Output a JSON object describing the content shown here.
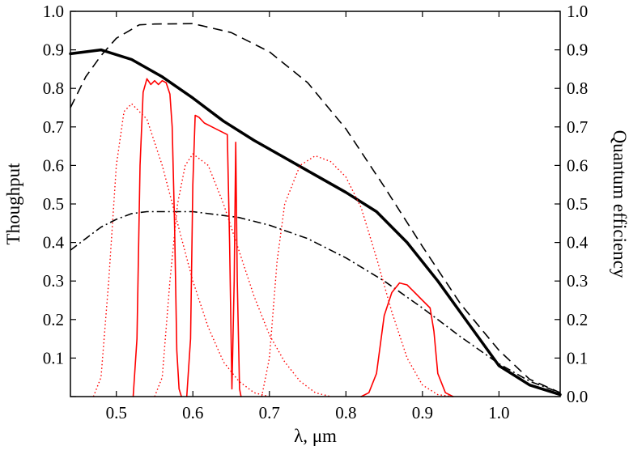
{
  "chart_data": {
    "type": "line",
    "xlabel": "λ, μm",
    "ylabel": "Thoughput",
    "ylabel_right": "Quantum efficiency",
    "xlim": [
      0.44,
      1.08
    ],
    "ylim": [
      0.0,
      1.0
    ],
    "ylim_right": [
      0.0,
      1.0
    ],
    "x_ticks": [
      0.5,
      0.6,
      0.7,
      0.8,
      0.9,
      1.0
    ],
    "x_tick_labels": [
      "0.5",
      "0.6",
      "0.7",
      "0.8",
      "0.9",
      "1.0"
    ],
    "y_ticks": [
      0.0,
      0.1,
      0.2,
      0.3,
      0.4,
      0.5,
      0.6,
      0.7,
      0.8,
      0.9,
      1.0
    ],
    "y_tick_labels_left": [
      "",
      "0.1",
      "0.2",
      "0.3",
      "0.4",
      "0.5",
      "0.6",
      "0.7",
      "0.8",
      "0.9",
      "1.0"
    ],
    "y_tick_labels_right": [
      "0.0",
      "0.1",
      "0.2",
      "0.3",
      "0.4",
      "0.5",
      "0.6",
      "0.7",
      "0.8",
      "0.9",
      "1.0"
    ],
    "grid": false,
    "series": [
      {
        "style": "solid-thick",
        "color": "#000000",
        "x": [
          0.44,
          0.46,
          0.48,
          0.52,
          0.56,
          0.6,
          0.64,
          0.68,
          0.72,
          0.76,
          0.8,
          0.84,
          0.88,
          0.92,
          0.96,
          1.0,
          1.04,
          1.08
        ],
        "y": [
          0.89,
          0.895,
          0.9,
          0.875,
          0.83,
          0.775,
          0.715,
          0.665,
          0.62,
          0.575,
          0.53,
          0.48,
          0.4,
          0.3,
          0.19,
          0.08,
          0.03,
          0.005
        ]
      },
      {
        "style": "dashed",
        "color": "#000000",
        "x": [
          0.44,
          0.46,
          0.48,
          0.5,
          0.53,
          0.55,
          0.6,
          0.65,
          0.7,
          0.75,
          0.8,
          0.85,
          0.9,
          0.95,
          1.0,
          1.04,
          1.08
        ],
        "y": [
          0.75,
          0.83,
          0.885,
          0.93,
          0.965,
          0.967,
          0.968,
          0.945,
          0.895,
          0.815,
          0.695,
          0.545,
          0.39,
          0.24,
          0.12,
          0.045,
          0.01
        ]
      },
      {
        "style": "dashdot",
        "color": "#000000",
        "x": [
          0.44,
          0.46,
          0.48,
          0.5,
          0.52,
          0.54,
          0.6,
          0.66,
          0.7,
          0.75,
          0.8,
          0.85,
          0.9,
          0.95,
          1.0,
          1.04,
          1.08
        ],
        "y": [
          0.38,
          0.41,
          0.44,
          0.46,
          0.475,
          0.48,
          0.48,
          0.465,
          0.445,
          0.41,
          0.36,
          0.3,
          0.23,
          0.155,
          0.085,
          0.04,
          0.01
        ]
      },
      {
        "style": "solid",
        "color": "#ff0000",
        "x": [
          0.522,
          0.527,
          0.531,
          0.535,
          0.54,
          0.545,
          0.55,
          0.555,
          0.56,
          0.565,
          0.57,
          0.573,
          0.576,
          0.579,
          0.582,
          0.585
        ],
        "y": [
          0.0,
          0.15,
          0.6,
          0.79,
          0.825,
          0.81,
          0.82,
          0.81,
          0.82,
          0.815,
          0.785,
          0.7,
          0.45,
          0.12,
          0.02,
          0.0
        ]
      },
      {
        "style": "solid",
        "color": "#ff0000",
        "x": [
          0.592,
          0.597,
          0.6,
          0.603,
          0.608,
          0.615,
          0.625,
          0.635,
          0.645,
          0.648,
          0.651,
          0.654,
          0.656,
          0.658,
          0.661,
          0.663
        ],
        "y": [
          0.0,
          0.15,
          0.55,
          0.73,
          0.725,
          0.71,
          0.7,
          0.69,
          0.68,
          0.4,
          0.02,
          0.3,
          0.66,
          0.3,
          0.02,
          0.0
        ]
      },
      {
        "style": "solid",
        "color": "#ff0000",
        "x": [
          0.82,
          0.83,
          0.84,
          0.85,
          0.86,
          0.87,
          0.88,
          0.89,
          0.9,
          0.91,
          0.915,
          0.92,
          0.93,
          0.94
        ],
        "y": [
          0.0,
          0.01,
          0.06,
          0.21,
          0.27,
          0.295,
          0.29,
          0.27,
          0.25,
          0.23,
          0.17,
          0.06,
          0.01,
          0.0
        ]
      },
      {
        "style": "dotted",
        "color": "#ff0000",
        "x": [
          0.47,
          0.48,
          0.49,
          0.5,
          0.51,
          0.52,
          0.54,
          0.56,
          0.58,
          0.6,
          0.62,
          0.64,
          0.66,
          0.68,
          0.7
        ],
        "y": [
          0.0,
          0.05,
          0.3,
          0.6,
          0.74,
          0.76,
          0.72,
          0.6,
          0.45,
          0.3,
          0.18,
          0.09,
          0.04,
          0.01,
          0.0
        ]
      },
      {
        "style": "dotted",
        "color": "#ff0000",
        "x": [
          0.55,
          0.56,
          0.57,
          0.58,
          0.59,
          0.6,
          0.62,
          0.64,
          0.66,
          0.68,
          0.7,
          0.72,
          0.74,
          0.76,
          0.78
        ],
        "y": [
          0.0,
          0.05,
          0.3,
          0.5,
          0.6,
          0.63,
          0.6,
          0.5,
          0.38,
          0.26,
          0.16,
          0.09,
          0.04,
          0.01,
          0.0
        ]
      },
      {
        "style": "dotted",
        "color": "#ff0000",
        "x": [
          0.69,
          0.7,
          0.71,
          0.72,
          0.74,
          0.76,
          0.78,
          0.8,
          0.82,
          0.84,
          0.86,
          0.88,
          0.9,
          0.92,
          0.94
        ],
        "y": [
          0.0,
          0.1,
          0.35,
          0.5,
          0.6,
          0.625,
          0.61,
          0.57,
          0.49,
          0.36,
          0.22,
          0.1,
          0.03,
          0.005,
          0.0
        ]
      }
    ]
  }
}
